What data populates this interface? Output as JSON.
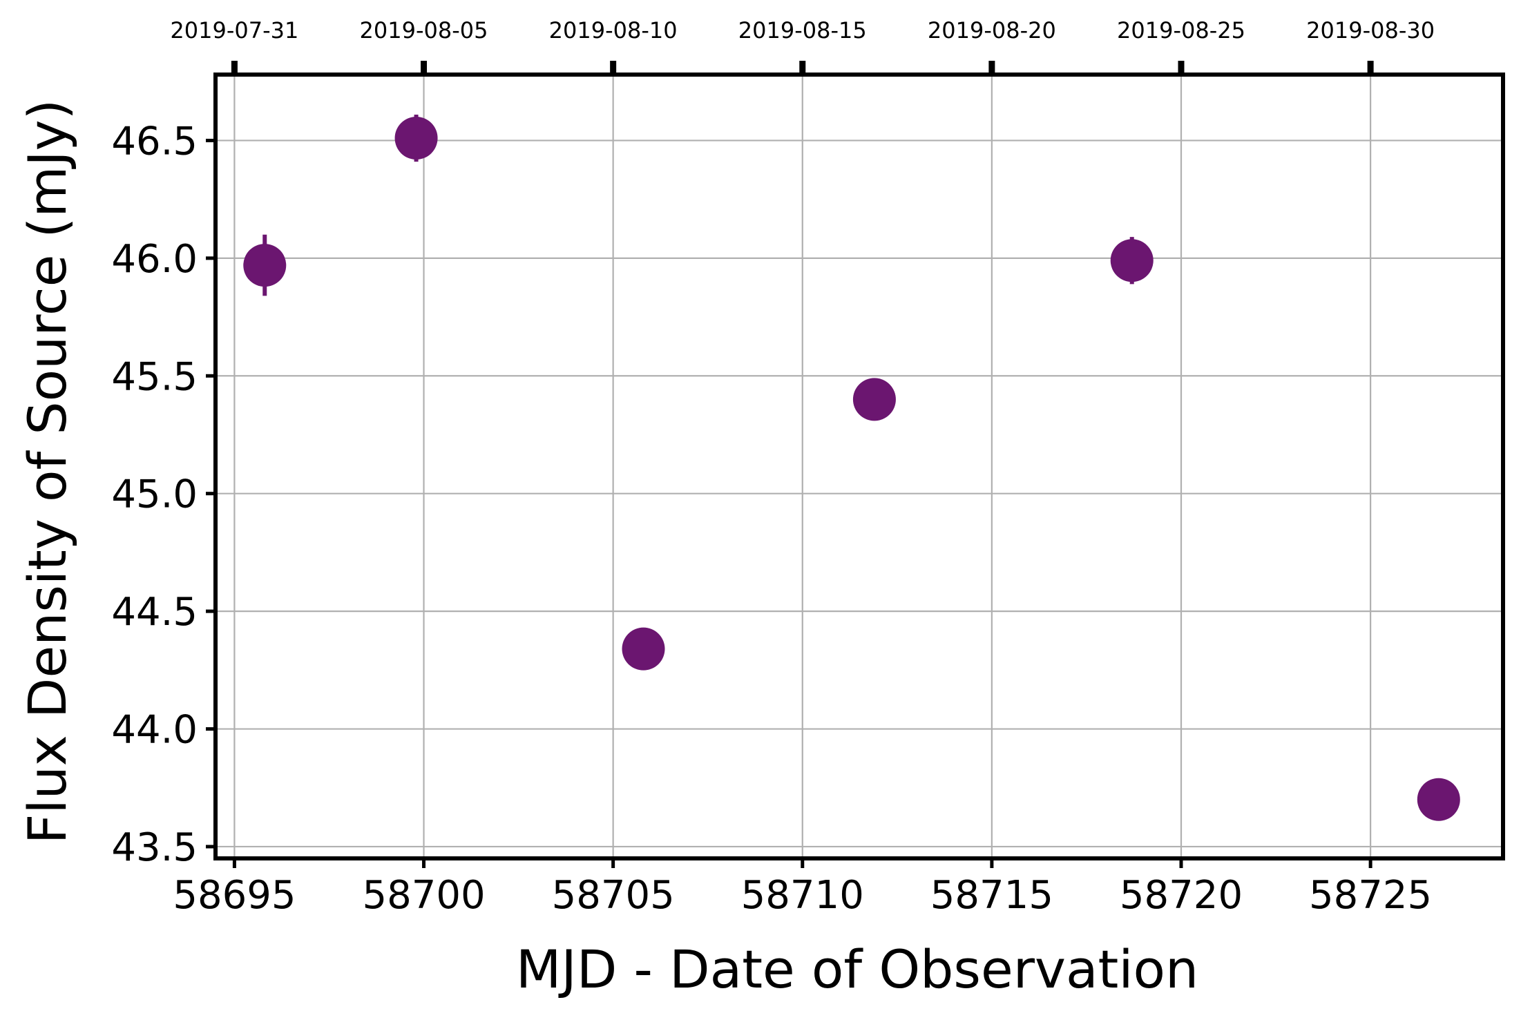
{
  "chart_data": {
    "type": "scatter",
    "title": "",
    "xlabel": "MJD - Date of Observation",
    "ylabel": "Flux Density of Source (mJy)",
    "xlim": [
      58694.5,
      58728.5
    ],
    "ylim": [
      43.45,
      46.78
    ],
    "xticks": [
      58695,
      58700,
      58705,
      58710,
      58715,
      58720,
      58725
    ],
    "xtick_labels": [
      "58695",
      "58700",
      "58705",
      "58710",
      "58715",
      "58720",
      "58725"
    ],
    "yticks": [
      43.5,
      44.0,
      44.5,
      45.0,
      45.5,
      46.0,
      46.5
    ],
    "ytick_labels": [
      "43.5",
      "44.0",
      "44.5",
      "45.0",
      "45.5",
      "46.0",
      "46.5"
    ],
    "top_xticks": [
      58695,
      58700,
      58705,
      58710,
      58715,
      58720,
      58725
    ],
    "top_xtick_labels": [
      "2019-07-31",
      "2019-08-05",
      "2019-08-10",
      "2019-08-15",
      "2019-08-20",
      "2019-08-25",
      "2019-08-30"
    ],
    "grid": true,
    "marker_color": "#6b1670",
    "series": [
      {
        "x": [
          58695.8,
          58699.8,
          58705.8,
          58711.9,
          58718.7,
          58726.8
        ],
        "y": [
          45.97,
          46.51,
          44.34,
          45.4,
          45.99,
          43.7
        ],
        "yerr": [
          0.13,
          0.1,
          0.03,
          0.03,
          0.1,
          0.03
        ]
      }
    ]
  }
}
